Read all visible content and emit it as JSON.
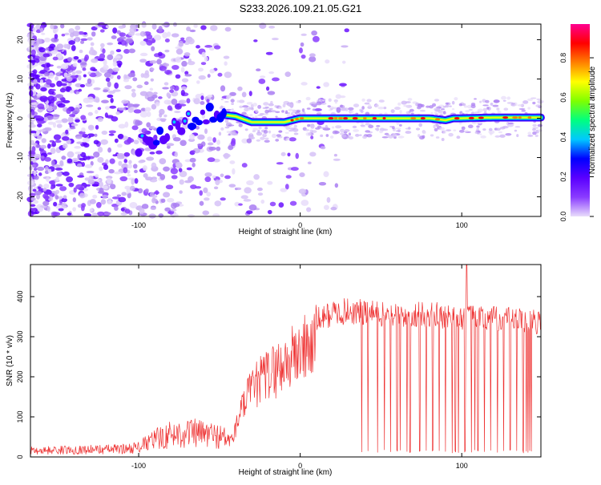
{
  "title": "S233.2026.109.21.05.G21",
  "chart_data": [
    {
      "type": "heatmap",
      "xlabel": "Height of straight line (km)",
      "ylabel": "Frequency (Hz)",
      "xlim": [
        -167,
        149
      ],
      "ylim": [
        -25,
        24
      ],
      "xticks": [
        -100,
        0,
        100
      ],
      "yticks": [
        -20,
        -10,
        0,
        10,
        20
      ],
      "colorbar": {
        "label": "Normalized spectral amplitude",
        "range": [
          0,
          0.97
        ],
        "ticks": [
          0.0,
          0.2,
          0.4,
          0.6,
          0.8
        ],
        "stops": [
          "#e9ddfb",
          "#8a3cff",
          "#5a00ff",
          "#0000ff",
          "#00c8ff",
          "#00ff80",
          "#7fff00",
          "#ffff00",
          "#ff8000",
          "#ff0000",
          "#ff0090"
        ]
      },
      "track": [
        [
          -100,
          -7
        ],
        [
          -90,
          -6
        ],
        [
          -80,
          -3
        ],
        [
          -70,
          -1
        ],
        [
          -60,
          0
        ],
        [
          -50,
          1
        ],
        [
          -40,
          0.5
        ],
        [
          -30,
          -1
        ],
        [
          -20,
          -1
        ],
        [
          -10,
          -1
        ],
        [
          0,
          0
        ],
        [
          10,
          0
        ],
        [
          20,
          0
        ],
        [
          40,
          0
        ],
        [
          60,
          0
        ],
        [
          80,
          0
        ],
        [
          90,
          -0.5
        ],
        [
          95,
          0
        ],
        [
          100,
          0
        ],
        [
          120,
          0.2
        ],
        [
          149,
          0.2
        ]
      ],
      "colorbar_ticks_text": [
        "0.0",
        "0.2",
        "0.4",
        "0.6",
        "0.8"
      ]
    },
    {
      "type": "line",
      "xlabel": "Height of straight line (km)",
      "ylabel": "SNR (10 * v/v)",
      "xlim": [
        -167,
        149
      ],
      "ylim": [
        0,
        480
      ],
      "xticks": [
        -100,
        0,
        100
      ],
      "yticks": [
        0,
        100,
        200,
        300,
        400
      ],
      "series": [
        {
          "name": "SNR",
          "color": "#ee3333",
          "envelope": [
            [
              -167,
              20
            ],
            [
              -140,
              22
            ],
            [
              -110,
              25
            ],
            [
              -100,
              30
            ],
            [
              -90,
              55
            ],
            [
              -80,
              70
            ],
            [
              -70,
              75
            ],
            [
              -60,
              72
            ],
            [
              -50,
              65
            ],
            [
              -42,
              50
            ],
            [
              -38,
              120
            ],
            [
              -35,
              160
            ],
            [
              -30,
              200
            ],
            [
              -25,
              230
            ],
            [
              -20,
              250
            ],
            [
              -15,
              265
            ],
            [
              -10,
              280
            ],
            [
              -5,
              300
            ],
            [
              0,
              320
            ],
            [
              10,
              350
            ],
            [
              20,
              370
            ],
            [
              30,
              375
            ],
            [
              40,
              370
            ],
            [
              60,
              365
            ],
            [
              80,
              365
            ],
            [
              100,
              360
            ],
            [
              120,
              355
            ],
            [
              140,
              350
            ],
            [
              149,
              345
            ]
          ],
          "dropouts": [
            38,
            42,
            48,
            52,
            56,
            60,
            62,
            66,
            68,
            74,
            78,
            82,
            86,
            90,
            94,
            96,
            98,
            102,
            106,
            108,
            110,
            114,
            118,
            122,
            126,
            130,
            134,
            138,
            140,
            141,
            142,
            143
          ],
          "peak": {
            "x": 103,
            "y": 480
          }
        }
      ]
    }
  ]
}
